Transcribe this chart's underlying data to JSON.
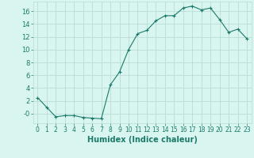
{
  "x": [
    0,
    1,
    2,
    3,
    4,
    5,
    6,
    7,
    8,
    9,
    10,
    11,
    12,
    13,
    14,
    15,
    16,
    17,
    18,
    19,
    20,
    21,
    22,
    23
  ],
  "y": [
    2.5,
    1.0,
    -0.5,
    -0.3,
    -0.3,
    -0.6,
    -0.7,
    -0.8,
    4.5,
    6.5,
    10.0,
    12.5,
    13.0,
    14.5,
    15.3,
    15.3,
    16.5,
    16.8,
    16.2,
    16.5,
    14.7,
    12.7,
    13.2,
    11.7
  ],
  "line_color": "#1a7a6a",
  "marker": "+",
  "marker_color": "#1a7a6a",
  "bg_color": "#d9f5f0",
  "grid_color": "#b8ddd6",
  "xlabel": "Humidex (Indice chaleur)",
  "xlabel_fontsize": 7,
  "ylabel_ticks": [
    0,
    2,
    4,
    6,
    8,
    10,
    12,
    14,
    16
  ],
  "ylabel_labels": [
    "-0",
    "2",
    "4",
    "6",
    "8",
    "10",
    "12",
    "14",
    "16"
  ],
  "ylim": [
    -1.5,
    17.5
  ],
  "xlim": [
    -0.5,
    23.5
  ],
  "tick_label_color": "#1a7a6a",
  "tick_fontsize": 5.5,
  "ytick_fontsize": 6.0,
  "linewidth": 0.8,
  "markersize": 3.5,
  "markeredgewidth": 0.8
}
